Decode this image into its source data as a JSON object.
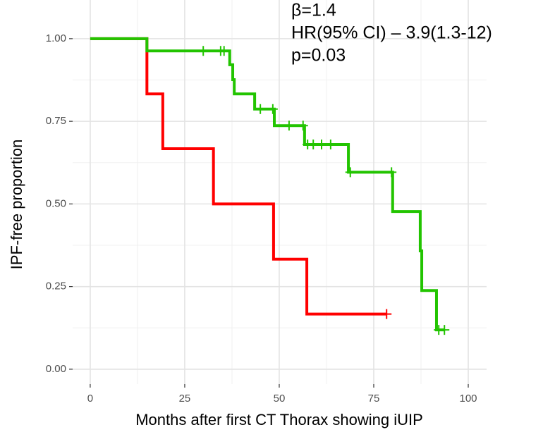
{
  "chart_data": {
    "type": "step",
    "annotations": [
      "β=1.4",
      "HR(95% CI) – 3.9(1.3-12)",
      "p=0.03"
    ],
    "x_label": "Months after first CT Thorax showing iUIP",
    "y_label": "IPF-free proportion",
    "xlim": [
      -4.65,
      104.85
    ],
    "ylim": [
      -0.045,
      1.117
    ],
    "xticks": [
      0,
      25,
      50,
      75,
      100
    ],
    "yticks": [
      {
        "value": 0,
        "label": "0.00"
      },
      {
        "value": 0.25,
        "label": "0.25"
      },
      {
        "value": 0.5,
        "label": "0.50"
      },
      {
        "value": 0.75,
        "label": "0.75"
      },
      {
        "value": 1,
        "label": "1.00"
      }
    ],
    "grid": true,
    "series": [
      {
        "color": "#ff0000",
        "x": [
          0,
          15,
          19.2,
          32.6,
          48.5,
          57.3,
          78.4
        ],
        "values": [
          1,
          0.833,
          0.667,
          0.5,
          0.333,
          0.167,
          0.167
        ],
        "censor_x": [
          78.4
        ],
        "censor_values": [
          0.167
        ]
      },
      {
        "color": "#22c400",
        "x": [
          0,
          15,
          36.9,
          37.7,
          38.1,
          43.5,
          48.7,
          56.7,
          68.3,
          80,
          87.3,
          87.7,
          91.6,
          93.7
        ],
        "values": [
          1,
          0.963,
          0.921,
          0.876,
          0.833,
          0.787,
          0.737,
          0.68,
          0.596,
          0.477,
          0.358,
          0.238,
          0.119,
          0.119
        ],
        "censor_x": [
          29.9,
          34.5,
          35.4,
          45,
          48.3,
          52.6,
          56.3,
          57.5,
          59,
          61.2,
          63.6,
          68.8,
          79.7,
          92.2,
          93.7
        ],
        "censor_values": [
          0.963,
          0.963,
          0.963,
          0.787,
          0.787,
          0.737,
          0.737,
          0.68,
          0.68,
          0.68,
          0.68,
          0.596,
          0.596,
          0.119,
          0.119
        ]
      }
    ]
  }
}
